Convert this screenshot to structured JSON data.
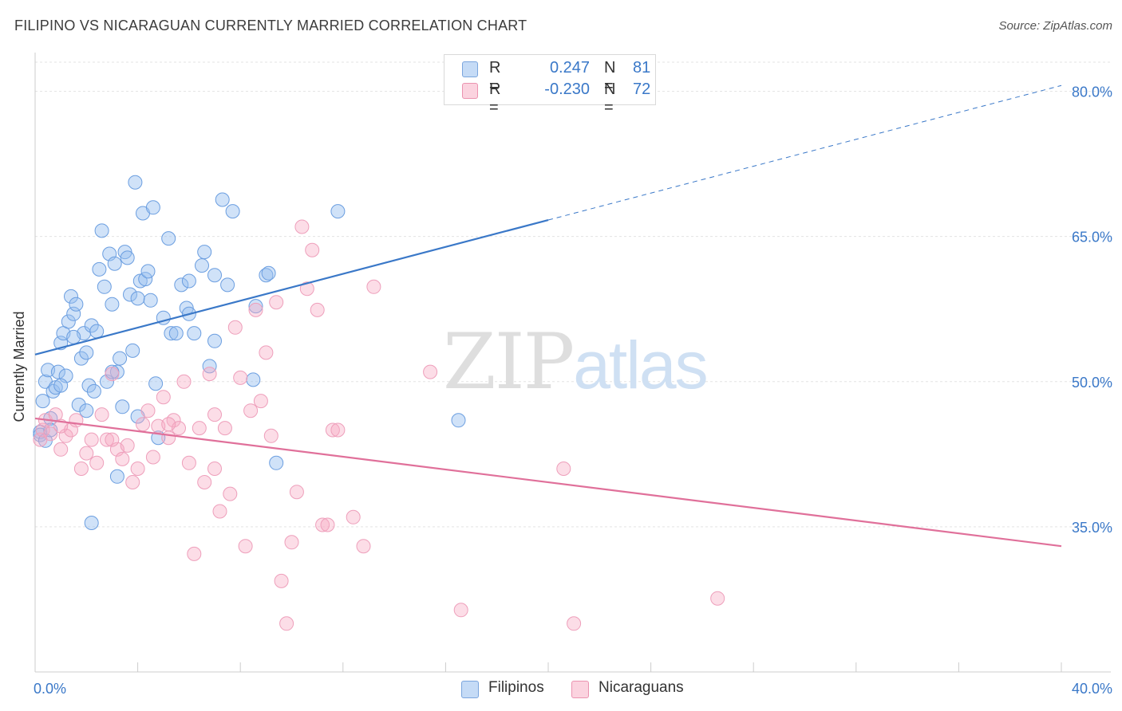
{
  "title": "FILIPINO VS NICARAGUAN CURRENTLY MARRIED CORRELATION CHART",
  "source": "Source: ZipAtlas.com",
  "watermark": {
    "part1": "ZIP",
    "part2": "atlas"
  },
  "legend": {
    "rows": [
      {
        "r_label": "R =",
        "r_value": "0.247",
        "n_label": "N =",
        "n_value": "81",
        "color": "#a9c8f0"
      },
      {
        "r_label": "R =",
        "r_value": "-0.230",
        "n_label": "N =",
        "n_value": "72",
        "color": "#f7b8cc"
      }
    ]
  },
  "bottom_legend": [
    {
      "label": "Filipinos",
      "color": "#a9c8f0"
    },
    {
      "label": "Nicaraguans",
      "color": "#f7b8cc"
    }
  ],
  "chart_data": {
    "type": "scatter",
    "title": "FILIPINO VS NICARAGUAN CURRENTLY MARRIED CORRELATION CHART",
    "xlabel": "",
    "ylabel": "Currently Married",
    "xlim": [
      0,
      40
    ],
    "ylim": [
      20,
      84
    ],
    "x_tick_labels": [
      "0.0%",
      "40.0%"
    ],
    "y_ticks": [
      35,
      50,
      65,
      80
    ],
    "y_tick_labels": [
      "35.0%",
      "50.0%",
      "65.0%",
      "80.0%"
    ],
    "grid": true,
    "colors": {
      "filipinos": "#3a78c8",
      "nicaraguans": "#e0709a",
      "axis_labels": "#3a78c8"
    },
    "series": [
      {
        "name": "Filipinos",
        "color": "#3a78c8",
        "trend": {
          "x0": 0,
          "y0": 52.8,
          "x1": 20,
          "y1": 66.7,
          "x_dash_end": 40,
          "y_dash_end": 80.6
        },
        "points": [
          [
            0.2,
            44.8
          ],
          [
            0.3,
            48.0
          ],
          [
            0.4,
            50.0
          ],
          [
            0.5,
            51.2
          ],
          [
            0.6,
            46.2
          ],
          [
            0.7,
            49.0
          ],
          [
            0.8,
            49.4
          ],
          [
            0.9,
            51.0
          ],
          [
            1.0,
            54.0
          ],
          [
            1.1,
            55.0
          ],
          [
            1.2,
            50.6
          ],
          [
            1.3,
            56.2
          ],
          [
            1.4,
            58.8
          ],
          [
            1.5,
            57.0
          ],
          [
            1.6,
            58.0
          ],
          [
            1.7,
            47.6
          ],
          [
            1.8,
            52.4
          ],
          [
            1.9,
            55.0
          ],
          [
            2.0,
            53.0
          ],
          [
            2.1,
            49.6
          ],
          [
            2.2,
            55.8
          ],
          [
            2.3,
            49.0
          ],
          [
            2.4,
            55.2
          ],
          [
            2.5,
            61.6
          ],
          [
            2.6,
            65.6
          ],
          [
            2.7,
            59.8
          ],
          [
            2.8,
            50.0
          ],
          [
            2.9,
            63.2
          ],
          [
            3.0,
            58.0
          ],
          [
            3.1,
            62.2
          ],
          [
            3.2,
            51.0
          ],
          [
            3.3,
            52.4
          ],
          [
            3.4,
            47.4
          ],
          [
            3.5,
            63.4
          ],
          [
            3.6,
            62.8
          ],
          [
            3.7,
            59.0
          ],
          [
            3.8,
            53.2
          ],
          [
            3.9,
            70.6
          ],
          [
            4.0,
            58.6
          ],
          [
            4.1,
            60.4
          ],
          [
            4.2,
            67.4
          ],
          [
            4.3,
            60.6
          ],
          [
            4.4,
            61.4
          ],
          [
            4.5,
            58.4
          ],
          [
            4.6,
            68.0
          ],
          [
            4.7,
            49.8
          ],
          [
            4.8,
            44.2
          ],
          [
            5.0,
            56.6
          ],
          [
            5.2,
            64.8
          ],
          [
            5.3,
            55.0
          ],
          [
            5.5,
            55.0
          ],
          [
            5.7,
            60.0
          ],
          [
            5.9,
            57.6
          ],
          [
            6.0,
            60.4
          ],
          [
            6.2,
            55.0
          ],
          [
            6.5,
            62.0
          ],
          [
            6.6,
            63.4
          ],
          [
            6.8,
            51.6
          ],
          [
            7.0,
            54.2
          ],
          [
            7.3,
            68.8
          ],
          [
            7.5,
            60.0
          ],
          [
            7.7,
            67.6
          ],
          [
            8.5,
            50.2
          ],
          [
            8.6,
            57.8
          ],
          [
            7.0,
            61.0
          ],
          [
            3.2,
            40.2
          ],
          [
            2.2,
            35.4
          ],
          [
            0.2,
            44.5
          ],
          [
            0.4,
            43.9
          ],
          [
            0.6,
            45.0
          ],
          [
            9.0,
            61.0
          ],
          [
            9.1,
            61.2
          ],
          [
            9.4,
            41.6
          ],
          [
            11.8,
            67.6
          ],
          [
            16.5,
            46.0
          ],
          [
            1.0,
            49.6
          ],
          [
            2.0,
            47.0
          ],
          [
            3.0,
            51.0
          ],
          [
            4.0,
            46.4
          ],
          [
            1.5,
            54.6
          ],
          [
            6.0,
            57.0
          ]
        ]
      },
      {
        "name": "Nicaraguans",
        "color": "#e0709a",
        "trend": {
          "x0": 0,
          "y0": 46.2,
          "x1": 40,
          "y1": 33.0
        },
        "points": [
          [
            0.2,
            44.0
          ],
          [
            0.3,
            45.0
          ],
          [
            0.4,
            46.0
          ],
          [
            0.6,
            44.6
          ],
          [
            0.8,
            46.6
          ],
          [
            1.0,
            43.0
          ],
          [
            1.2,
            44.4
          ],
          [
            1.4,
            45.0
          ],
          [
            1.6,
            46.0
          ],
          [
            1.8,
            41.0
          ],
          [
            2.0,
            42.6
          ],
          [
            2.2,
            44.0
          ],
          [
            2.4,
            41.6
          ],
          [
            2.6,
            46.6
          ],
          [
            2.8,
            44.0
          ],
          [
            3.0,
            50.8
          ],
          [
            3.2,
            43.0
          ],
          [
            3.4,
            42.0
          ],
          [
            3.6,
            43.4
          ],
          [
            3.8,
            39.6
          ],
          [
            4.0,
            41.0
          ],
          [
            4.2,
            45.6
          ],
          [
            4.4,
            47.0
          ],
          [
            4.6,
            42.2
          ],
          [
            4.8,
            45.4
          ],
          [
            5.0,
            48.4
          ],
          [
            5.2,
            44.2
          ],
          [
            5.4,
            46.0
          ],
          [
            5.6,
            45.2
          ],
          [
            5.8,
            50.0
          ],
          [
            6.0,
            41.6
          ],
          [
            6.2,
            32.2
          ],
          [
            6.4,
            45.2
          ],
          [
            6.6,
            39.6
          ],
          [
            6.8,
            50.8
          ],
          [
            7.0,
            41.0
          ],
          [
            7.2,
            36.6
          ],
          [
            7.4,
            45.2
          ],
          [
            7.6,
            38.4
          ],
          [
            7.8,
            55.6
          ],
          [
            8.0,
            50.4
          ],
          [
            8.2,
            33.0
          ],
          [
            8.4,
            47.0
          ],
          [
            8.6,
            57.4
          ],
          [
            8.8,
            48.0
          ],
          [
            9.0,
            53.0
          ],
          [
            9.2,
            44.4
          ],
          [
            9.4,
            58.2
          ],
          [
            9.6,
            29.4
          ],
          [
            9.8,
            25.0
          ],
          [
            10.0,
            33.4
          ],
          [
            10.2,
            38.6
          ],
          [
            10.4,
            66.0
          ],
          [
            10.6,
            59.6
          ],
          [
            10.8,
            63.6
          ],
          [
            11.0,
            57.4
          ],
          [
            11.2,
            35.2
          ],
          [
            11.4,
            35.2
          ],
          [
            11.6,
            45.0
          ],
          [
            11.8,
            45.0
          ],
          [
            12.4,
            36.0
          ],
          [
            12.8,
            33.0
          ],
          [
            13.2,
            59.8
          ],
          [
            15.4,
            51.0
          ],
          [
            16.6,
            26.4
          ],
          [
            20.6,
            41.0
          ],
          [
            21.0,
            25.0
          ],
          [
            26.6,
            27.6
          ],
          [
            5.2,
            45.6
          ],
          [
            3.0,
            44.0
          ],
          [
            7.0,
            46.6
          ],
          [
            1.0,
            45.4
          ]
        ]
      }
    ]
  }
}
